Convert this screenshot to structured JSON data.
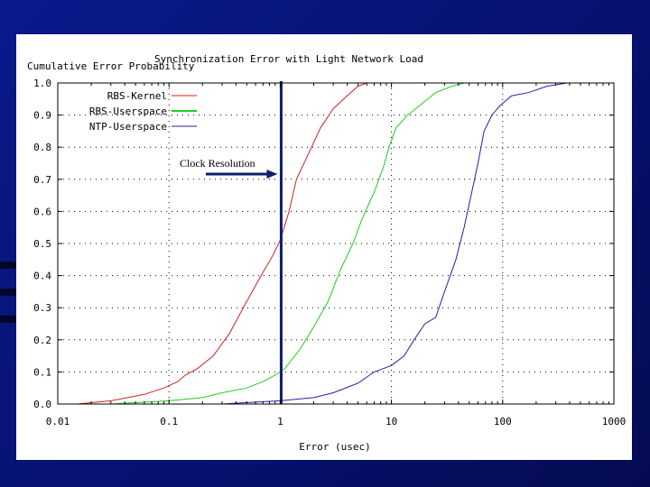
{
  "chart_data": {
    "type": "line",
    "title": "Synchronization Error with Light Network Load",
    "ylabel": "Cumulative Error Probability",
    "xlabel": "Error (usec)",
    "xscale": "log",
    "xlim": [
      0.01,
      1000
    ],
    "ylim": [
      0,
      1
    ],
    "x_ticks": [
      {
        "value": 0.01,
        "label": "0.01"
      },
      {
        "value": 0.1,
        "label": "0.1"
      },
      {
        "value": 1,
        "label": "1"
      },
      {
        "value": 10,
        "label": "10"
      },
      {
        "value": 100,
        "label": "100"
      },
      {
        "value": 1000,
        "label": "1000"
      }
    ],
    "y_ticks": [
      {
        "value": 0,
        "label": "0.0"
      },
      {
        "value": 0.1,
        "label": "0.1"
      },
      {
        "value": 0.2,
        "label": "0.2"
      },
      {
        "value": 0.3,
        "label": "0.3"
      },
      {
        "value": 0.4,
        "label": "0.4"
      },
      {
        "value": 0.5,
        "label": "0.5"
      },
      {
        "value": 0.6,
        "label": "0.6"
      },
      {
        "value": 0.7,
        "label": "0.7"
      },
      {
        "value": 0.8,
        "label": "0.8"
      },
      {
        "value": 0.9,
        "label": "0.9"
      },
      {
        "value": 1,
        "label": "1.0"
      }
    ],
    "grid": true,
    "legend_position": "top-left",
    "series": [
      {
        "name": "RBS-Kernel",
        "color": "#cc2222",
        "points": [
          [
            0.015,
            0.0
          ],
          [
            0.03,
            0.01
          ],
          [
            0.06,
            0.03
          ],
          [
            0.09,
            0.05
          ],
          [
            0.12,
            0.07
          ],
          [
            0.14,
            0.09
          ],
          [
            0.18,
            0.11
          ],
          [
            0.25,
            0.15
          ],
          [
            0.35,
            0.22
          ],
          [
            0.5,
            0.32
          ],
          [
            0.7,
            0.41
          ],
          [
            0.85,
            0.46
          ],
          [
            1.0,
            0.51
          ],
          [
            1.2,
            0.6
          ],
          [
            1.4,
            0.7
          ],
          [
            1.8,
            0.78
          ],
          [
            2.3,
            0.86
          ],
          [
            3.0,
            0.92
          ],
          [
            4.0,
            0.96
          ],
          [
            5.0,
            0.99
          ],
          [
            6.0,
            1.0
          ]
        ]
      },
      {
        "name": "RBS-Userspace",
        "color": "#22cc22",
        "points": [
          [
            0.03,
            0.0
          ],
          [
            0.1,
            0.01
          ],
          [
            0.2,
            0.02
          ],
          [
            0.3,
            0.035
          ],
          [
            0.5,
            0.05
          ],
          [
            0.7,
            0.07
          ],
          [
            0.9,
            0.09
          ],
          [
            1.1,
            0.11
          ],
          [
            1.5,
            0.17
          ],
          [
            2.0,
            0.24
          ],
          [
            2.7,
            0.32
          ],
          [
            3.5,
            0.42
          ],
          [
            4.5,
            0.5
          ],
          [
            5.5,
            0.58
          ],
          [
            7.0,
            0.66
          ],
          [
            8.5,
            0.74
          ],
          [
            9.5,
            0.8
          ],
          [
            11,
            0.86
          ],
          [
            14,
            0.9
          ],
          [
            18,
            0.93
          ],
          [
            25,
            0.97
          ],
          [
            35,
            0.99
          ],
          [
            45,
            1.0
          ]
        ]
      },
      {
        "name": "NTP-Userspace",
        "color": "#2222aa",
        "points": [
          [
            0.3,
            0.0
          ],
          [
            1.0,
            0.01
          ],
          [
            2.0,
            0.02
          ],
          [
            3.0,
            0.035
          ],
          [
            5.0,
            0.065
          ],
          [
            7.0,
            0.1
          ],
          [
            10,
            0.12
          ],
          [
            13,
            0.15
          ],
          [
            16,
            0.2
          ],
          [
            20,
            0.25
          ],
          [
            25,
            0.27
          ],
          [
            30,
            0.35
          ],
          [
            38,
            0.45
          ],
          [
            45,
            0.55
          ],
          [
            52,
            0.65
          ],
          [
            60,
            0.75
          ],
          [
            68,
            0.85
          ],
          [
            80,
            0.9
          ],
          [
            95,
            0.93
          ],
          [
            120,
            0.96
          ],
          [
            170,
            0.97
          ],
          [
            250,
            0.99
          ],
          [
            380,
            1.0
          ]
        ]
      }
    ],
    "annotations": [
      {
        "type": "vertical_line",
        "x": 1.02,
        "label": "Clock Resolution",
        "color": "#0f1e6e"
      }
    ]
  }
}
